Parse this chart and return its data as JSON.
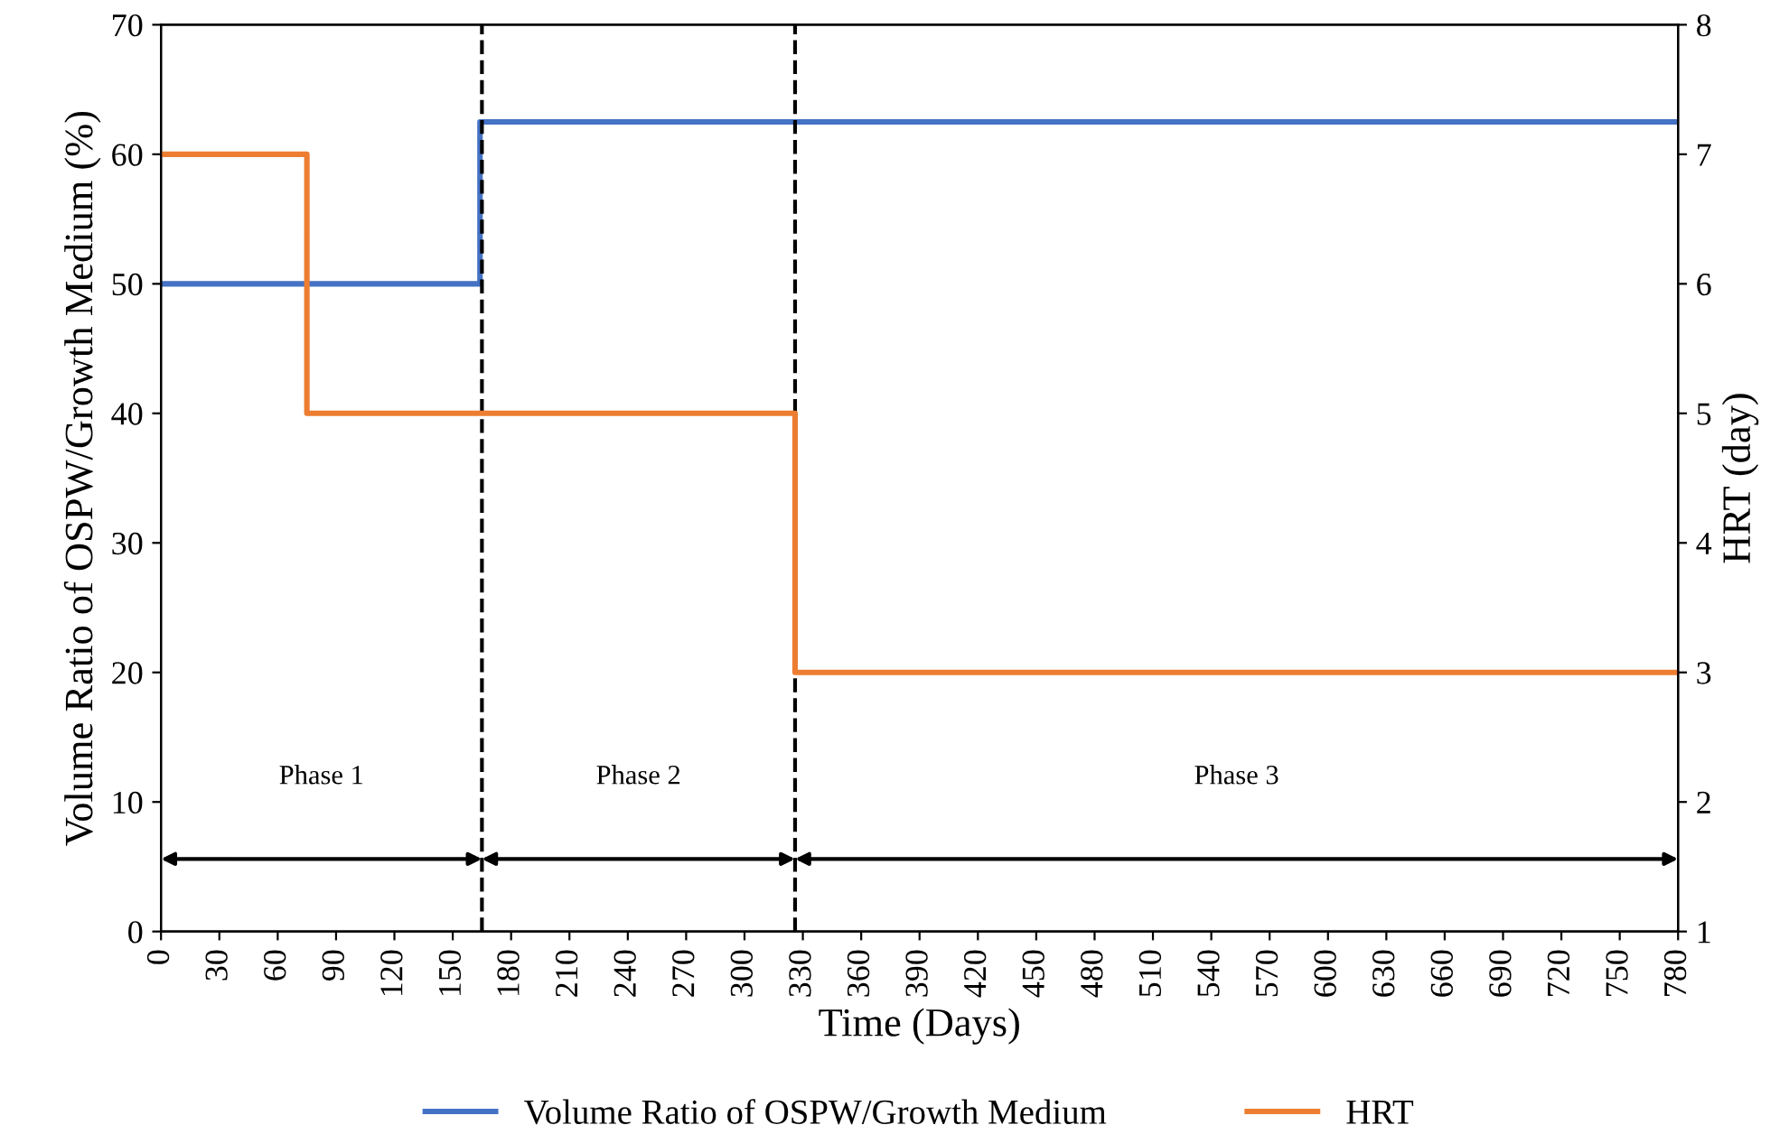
{
  "chart_data": {
    "type": "step",
    "xlabel": "Time (Days)",
    "ylabel": "Volume Ratio of OSPW/Growth Medium (%)",
    "y2label": "HRT (day)",
    "series": [
      {
        "name": "Volume Ratio of OSPW/Growth Medium",
        "color": "#4472c4",
        "x": [
          0,
          164,
          780
        ],
        "values": [
          50,
          62.5,
          62.5
        ]
      },
      {
        "name": "HRT",
        "color": "#ed7d31",
        "axis": "y2",
        "x": [
          0,
          75,
          326,
          780
        ],
        "values": [
          7,
          5,
          3,
          3
        ]
      }
    ],
    "xlim": [
      0,
      780
    ],
    "xticks": [
      0,
      30,
      60,
      90,
      120,
      150,
      180,
      210,
      240,
      270,
      300,
      330,
      360,
      390,
      420,
      450,
      480,
      510,
      540,
      570,
      600,
      630,
      660,
      690,
      720,
      750,
      780
    ],
    "ylim": [
      0,
      70
    ],
    "yticks": [
      0,
      10,
      20,
      30,
      40,
      50,
      60,
      70
    ],
    "y2lim": [
      1,
      8
    ],
    "y2ticks": [
      1,
      2,
      3,
      4,
      5,
      6,
      7,
      8
    ],
    "ref_lines": [
      {
        "axis": "x",
        "value": 165,
        "color": "#000000",
        "line_style": "dashed"
      },
      {
        "axis": "x",
        "value": 326,
        "color": "#000000",
        "line_style": "dashed"
      }
    ],
    "annotations": [
      "Phase 1",
      "Phase 2",
      "Phase 3"
    ],
    "legend": "bottom",
    "grid": false,
    "line_style": "solid",
    "marker": "none"
  }
}
